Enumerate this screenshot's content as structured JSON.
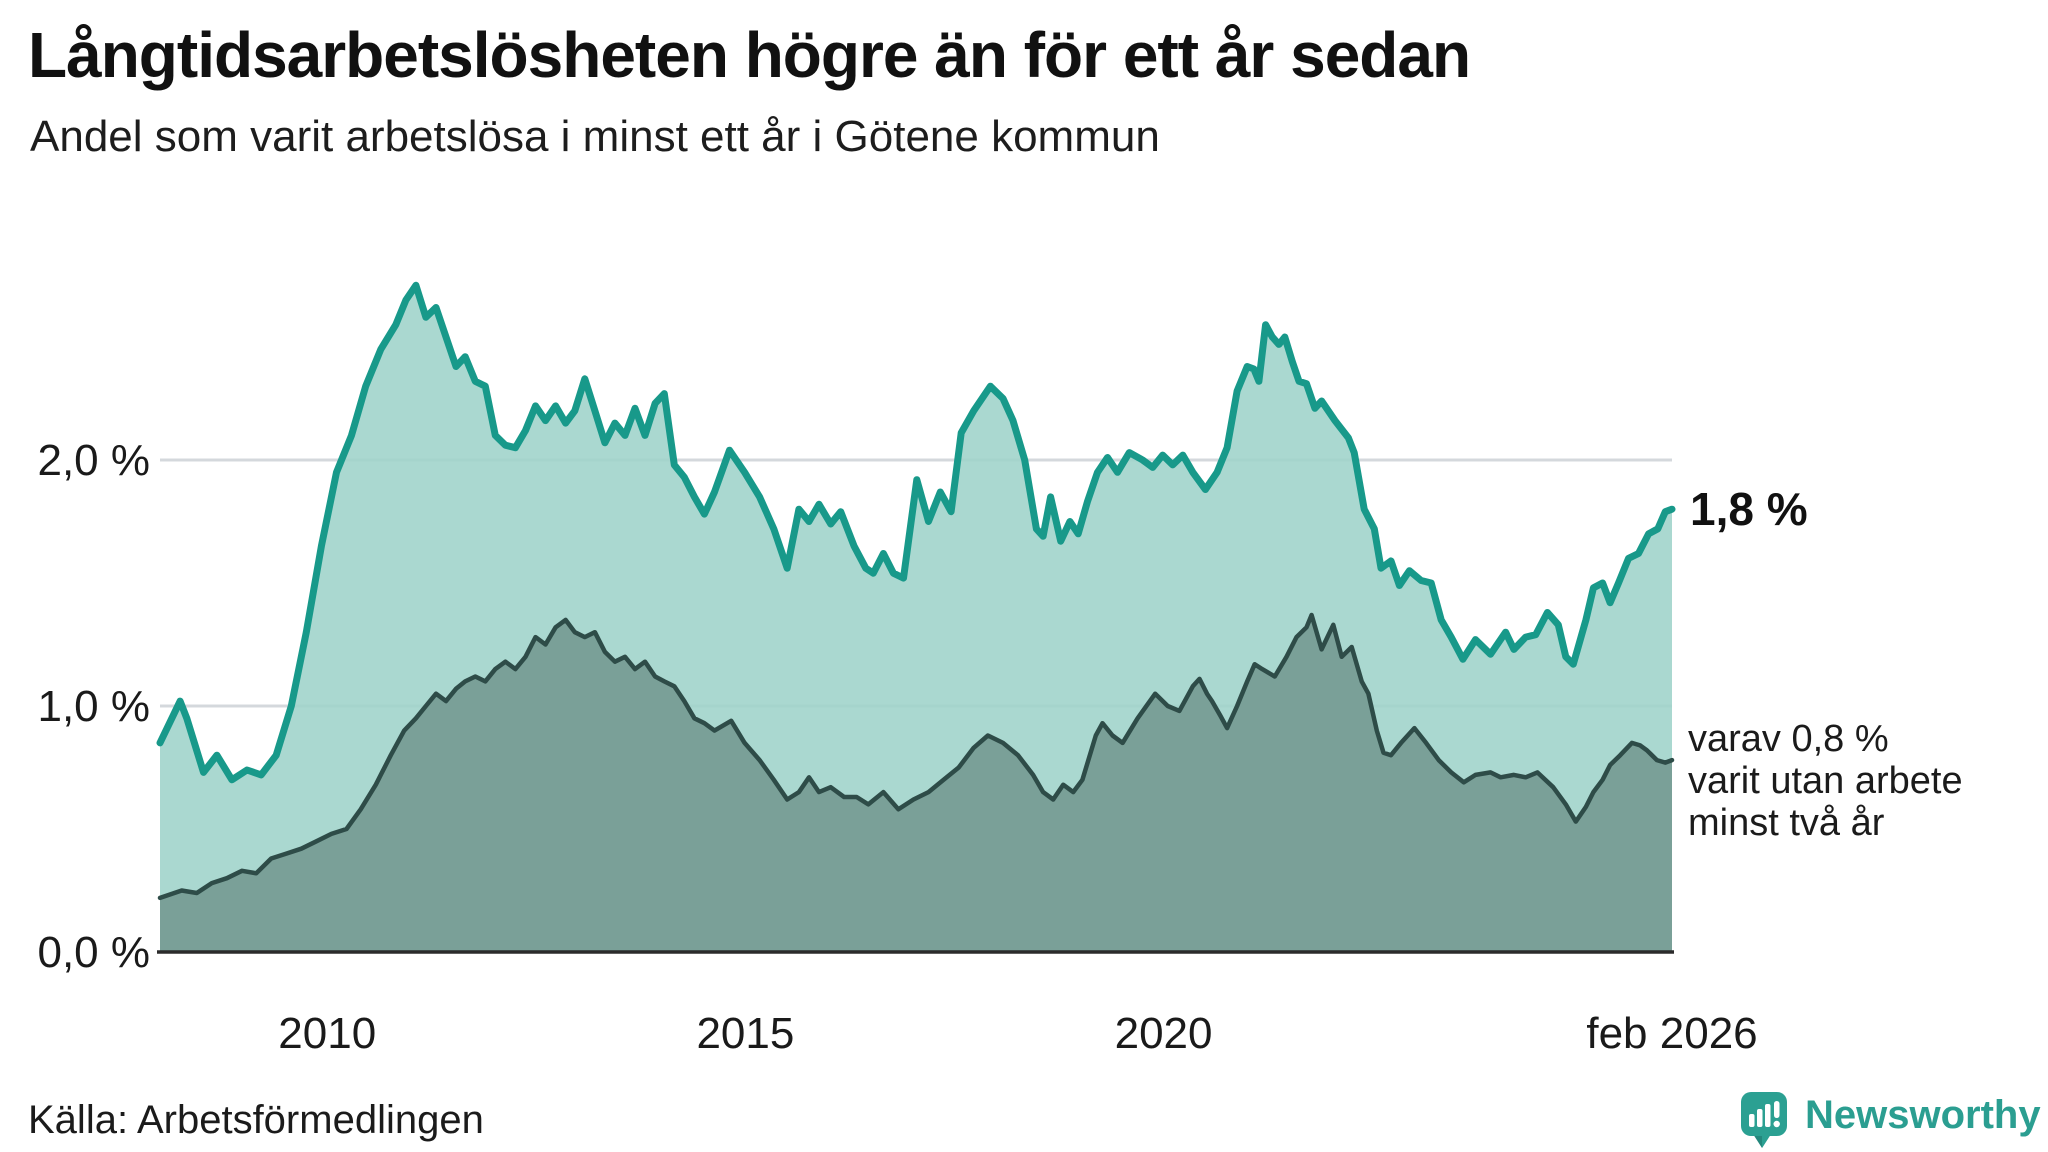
{
  "header": {
    "title": "Långtidsarbetslösheten högre än för ett år sedan",
    "subtitle": "Andel som varit arbetslösa i minst ett år i Götene kommun"
  },
  "annotations": {
    "end_value": "1,8 %",
    "sub_lines": [
      "varav 0,8 %",
      "varit utan arbete",
      "minst två år"
    ]
  },
  "footer": {
    "source": "Källa: Arbetsförmedlingen",
    "brand": "Newsworthy"
  },
  "colors": {
    "line_one_year": "#18998a",
    "fill_one_year": "#9ed3ca",
    "line_two_years": "#2e4c48",
    "fill_two_years": "#779d95",
    "gridline": "#d4d8dc",
    "axis": "#2b2b2b",
    "text": "#1a1a1a",
    "brand_teal": "#2b9e91"
  },
  "chart_data": {
    "type": "area",
    "title": "Långtidsarbetslösheten högre än för ett år sedan",
    "subtitle": "Andel som varit arbetslösa i minst ett år i Götene kommun",
    "x_range": [
      2008.0,
      2026.08
    ],
    "y_range": [
      0,
      2.8
    ],
    "x_axis": {
      "ticks": [
        {
          "x": 2010,
          "label": "2010"
        },
        {
          "x": 2015,
          "label": "2015"
        },
        {
          "x": 2020,
          "label": "2020"
        },
        {
          "x": 2026.08,
          "label": "feb 2026"
        }
      ]
    },
    "y_axis": {
      "ticks": [
        {
          "value": 0,
          "label": "0,0 %"
        },
        {
          "value": 1,
          "label": "1,0 %"
        },
        {
          "value": 2,
          "label": "2,0 %"
        }
      ],
      "gridlines": [
        1,
        2
      ]
    },
    "series": [
      {
        "name": "arbetslösa minst ett år",
        "end_label": "1,8 %",
        "end_value": 1.8,
        "points": [
          [
            2008.0,
            0.85
          ],
          [
            2008.24,
            1.02
          ],
          [
            2008.32,
            0.95
          ],
          [
            2008.52,
            0.73
          ],
          [
            2008.68,
            0.8
          ],
          [
            2008.86,
            0.7
          ],
          [
            2009.04,
            0.74
          ],
          [
            2009.21,
            0.72
          ],
          [
            2009.39,
            0.8
          ],
          [
            2009.57,
            1.0
          ],
          [
            2009.75,
            1.3
          ],
          [
            2009.93,
            1.65
          ],
          [
            2010.11,
            1.95
          ],
          [
            2010.29,
            2.1
          ],
          [
            2010.46,
            2.3
          ],
          [
            2010.64,
            2.45
          ],
          [
            2010.82,
            2.55
          ],
          [
            2010.94,
            2.65
          ],
          [
            2011.06,
            2.71
          ],
          [
            2011.18,
            2.58
          ],
          [
            2011.3,
            2.62
          ],
          [
            2011.42,
            2.5
          ],
          [
            2011.54,
            2.38
          ],
          [
            2011.65,
            2.42
          ],
          [
            2011.77,
            2.32
          ],
          [
            2011.89,
            2.3
          ],
          [
            2012.01,
            2.1
          ],
          [
            2012.13,
            2.06
          ],
          [
            2012.25,
            2.05
          ],
          [
            2012.37,
            2.12
          ],
          [
            2012.49,
            2.22
          ],
          [
            2012.61,
            2.16
          ],
          [
            2012.73,
            2.22
          ],
          [
            2012.85,
            2.15
          ],
          [
            2012.96,
            2.2
          ],
          [
            2013.08,
            2.33
          ],
          [
            2013.2,
            2.2
          ],
          [
            2013.32,
            2.07
          ],
          [
            2013.44,
            2.15
          ],
          [
            2013.56,
            2.1
          ],
          [
            2013.68,
            2.21
          ],
          [
            2013.8,
            2.1
          ],
          [
            2013.92,
            2.23
          ],
          [
            2014.03,
            2.27
          ],
          [
            2014.15,
            1.98
          ],
          [
            2014.27,
            1.93
          ],
          [
            2014.39,
            1.85
          ],
          [
            2014.51,
            1.78
          ],
          [
            2014.63,
            1.87
          ],
          [
            2014.81,
            2.04
          ],
          [
            2014.99,
            1.95
          ],
          [
            2015.17,
            1.85
          ],
          [
            2015.34,
            1.72
          ],
          [
            2015.5,
            1.56
          ],
          [
            2015.64,
            1.8
          ],
          [
            2015.76,
            1.75
          ],
          [
            2015.88,
            1.82
          ],
          [
            2016.02,
            1.74
          ],
          [
            2016.14,
            1.79
          ],
          [
            2016.3,
            1.65
          ],
          [
            2016.44,
            1.56
          ],
          [
            2016.53,
            1.54
          ],
          [
            2016.65,
            1.62
          ],
          [
            2016.77,
            1.54
          ],
          [
            2016.89,
            1.52
          ],
          [
            2017.05,
            1.92
          ],
          [
            2017.19,
            1.75
          ],
          [
            2017.33,
            1.87
          ],
          [
            2017.46,
            1.79
          ],
          [
            2017.58,
            2.11
          ],
          [
            2017.73,
            2.2
          ],
          [
            2017.93,
            2.3
          ],
          [
            2018.08,
            2.25
          ],
          [
            2018.2,
            2.16
          ],
          [
            2018.34,
            2.0
          ],
          [
            2018.48,
            1.72
          ],
          [
            2018.56,
            1.69
          ],
          [
            2018.65,
            1.85
          ],
          [
            2018.77,
            1.67
          ],
          [
            2018.88,
            1.75
          ],
          [
            2018.98,
            1.7
          ],
          [
            2019.09,
            1.83
          ],
          [
            2019.21,
            1.95
          ],
          [
            2019.33,
            2.01
          ],
          [
            2019.45,
            1.95
          ],
          [
            2019.59,
            2.03
          ],
          [
            2019.75,
            2.0
          ],
          [
            2019.87,
            1.97
          ],
          [
            2019.99,
            2.02
          ],
          [
            2020.11,
            1.98
          ],
          [
            2020.23,
            2.02
          ],
          [
            2020.35,
            1.95
          ],
          [
            2020.5,
            1.88
          ],
          [
            2020.64,
            1.95
          ],
          [
            2020.76,
            2.05
          ],
          [
            2020.88,
            2.28
          ],
          [
            2021.0,
            2.38
          ],
          [
            2021.08,
            2.37
          ],
          [
            2021.14,
            2.32
          ],
          [
            2021.22,
            2.55
          ],
          [
            2021.3,
            2.5
          ],
          [
            2021.38,
            2.47
          ],
          [
            2021.45,
            2.5
          ],
          [
            2021.54,
            2.4
          ],
          [
            2021.62,
            2.32
          ],
          [
            2021.71,
            2.31
          ],
          [
            2021.81,
            2.21
          ],
          [
            2021.89,
            2.24
          ],
          [
            2022.05,
            2.16
          ],
          [
            2022.21,
            2.09
          ],
          [
            2022.28,
            2.03
          ],
          [
            2022.4,
            1.8
          ],
          [
            2022.52,
            1.72
          ],
          [
            2022.6,
            1.56
          ],
          [
            2022.72,
            1.59
          ],
          [
            2022.82,
            1.49
          ],
          [
            2022.94,
            1.55
          ],
          [
            2023.08,
            1.51
          ],
          [
            2023.2,
            1.5
          ],
          [
            2023.32,
            1.35
          ],
          [
            2023.44,
            1.28
          ],
          [
            2023.58,
            1.19
          ],
          [
            2023.73,
            1.27
          ],
          [
            2023.91,
            1.21
          ],
          [
            2024.09,
            1.3
          ],
          [
            2024.19,
            1.23
          ],
          [
            2024.33,
            1.28
          ],
          [
            2024.45,
            1.29
          ],
          [
            2024.59,
            1.38
          ],
          [
            2024.72,
            1.33
          ],
          [
            2024.81,
            1.2
          ],
          [
            2024.9,
            1.17
          ],
          [
            2025.05,
            1.35
          ],
          [
            2025.14,
            1.48
          ],
          [
            2025.25,
            1.5
          ],
          [
            2025.34,
            1.42
          ],
          [
            2025.44,
            1.5
          ],
          [
            2025.56,
            1.6
          ],
          [
            2025.68,
            1.62
          ],
          [
            2025.8,
            1.7
          ],
          [
            2025.91,
            1.72
          ],
          [
            2026.0,
            1.79
          ],
          [
            2026.08,
            1.8
          ]
        ]
      },
      {
        "name": "varav arbetslösa minst två år",
        "end_label": "varav 0,8 % varit utan arbete minst två år",
        "end_value": 0.8,
        "points": [
          [
            2008.0,
            0.22
          ],
          [
            2008.26,
            0.25
          ],
          [
            2008.44,
            0.24
          ],
          [
            2008.62,
            0.28
          ],
          [
            2008.8,
            0.3
          ],
          [
            2008.98,
            0.33
          ],
          [
            2009.15,
            0.32
          ],
          [
            2009.33,
            0.38
          ],
          [
            2009.51,
            0.4
          ],
          [
            2009.69,
            0.42
          ],
          [
            2009.87,
            0.45
          ],
          [
            2010.05,
            0.48
          ],
          [
            2010.23,
            0.5
          ],
          [
            2010.4,
            0.58
          ],
          [
            2010.58,
            0.68
          ],
          [
            2010.76,
            0.8
          ],
          [
            2010.92,
            0.9
          ],
          [
            2011.06,
            0.95
          ],
          [
            2011.18,
            1.0
          ],
          [
            2011.3,
            1.05
          ],
          [
            2011.42,
            1.02
          ],
          [
            2011.54,
            1.07
          ],
          [
            2011.65,
            1.1
          ],
          [
            2011.77,
            1.12
          ],
          [
            2011.89,
            1.1
          ],
          [
            2012.01,
            1.15
          ],
          [
            2012.13,
            1.18
          ],
          [
            2012.25,
            1.15
          ],
          [
            2012.37,
            1.2
          ],
          [
            2012.49,
            1.28
          ],
          [
            2012.61,
            1.25
          ],
          [
            2012.73,
            1.32
          ],
          [
            2012.85,
            1.35
          ],
          [
            2012.96,
            1.3
          ],
          [
            2013.08,
            1.28
          ],
          [
            2013.2,
            1.3
          ],
          [
            2013.32,
            1.22
          ],
          [
            2013.44,
            1.18
          ],
          [
            2013.56,
            1.2
          ],
          [
            2013.68,
            1.15
          ],
          [
            2013.8,
            1.18
          ],
          [
            2013.92,
            1.12
          ],
          [
            2014.03,
            1.1
          ],
          [
            2014.15,
            1.08
          ],
          [
            2014.27,
            1.02
          ],
          [
            2014.39,
            0.95
          ],
          [
            2014.51,
            0.93
          ],
          [
            2014.63,
            0.9
          ],
          [
            2014.83,
            0.94
          ],
          [
            2014.99,
            0.85
          ],
          [
            2015.17,
            0.78
          ],
          [
            2015.34,
            0.7
          ],
          [
            2015.5,
            0.62
          ],
          [
            2015.64,
            0.65
          ],
          [
            2015.76,
            0.71
          ],
          [
            2015.88,
            0.65
          ],
          [
            2016.02,
            0.67
          ],
          [
            2016.18,
            0.63
          ],
          [
            2016.33,
            0.63
          ],
          [
            2016.47,
            0.6
          ],
          [
            2016.65,
            0.65
          ],
          [
            2016.83,
            0.58
          ],
          [
            2017.01,
            0.62
          ],
          [
            2017.19,
            0.65
          ],
          [
            2017.37,
            0.7
          ],
          [
            2017.55,
            0.75
          ],
          [
            2017.73,
            0.83
          ],
          [
            2017.9,
            0.88
          ],
          [
            2018.08,
            0.85
          ],
          [
            2018.26,
            0.8
          ],
          [
            2018.44,
            0.72
          ],
          [
            2018.56,
            0.65
          ],
          [
            2018.68,
            0.62
          ],
          [
            2018.8,
            0.68
          ],
          [
            2018.92,
            0.65
          ],
          [
            2019.03,
            0.7
          ],
          [
            2019.19,
            0.88
          ],
          [
            2019.27,
            0.93
          ],
          [
            2019.39,
            0.88
          ],
          [
            2019.51,
            0.85
          ],
          [
            2019.69,
            0.95
          ],
          [
            2019.9,
            1.05
          ],
          [
            2020.05,
            1.0
          ],
          [
            2020.19,
            0.98
          ],
          [
            2020.35,
            1.08
          ],
          [
            2020.43,
            1.11
          ],
          [
            2020.52,
            1.05
          ],
          [
            2020.58,
            1.02
          ],
          [
            2020.68,
            0.96
          ],
          [
            2020.76,
            0.91
          ],
          [
            2020.88,
            1.0
          ],
          [
            2021.0,
            1.1
          ],
          [
            2021.09,
            1.17
          ],
          [
            2021.18,
            1.15
          ],
          [
            2021.33,
            1.12
          ],
          [
            2021.47,
            1.2
          ],
          [
            2021.59,
            1.28
          ],
          [
            2021.71,
            1.32
          ],
          [
            2021.77,
            1.37
          ],
          [
            2021.89,
            1.23
          ],
          [
            2022.03,
            1.33
          ],
          [
            2022.13,
            1.2
          ],
          [
            2022.25,
            1.24
          ],
          [
            2022.37,
            1.1
          ],
          [
            2022.45,
            1.05
          ],
          [
            2022.55,
            0.9
          ],
          [
            2022.63,
            0.81
          ],
          [
            2022.72,
            0.8
          ],
          [
            2022.84,
            0.85
          ],
          [
            2023.0,
            0.91
          ],
          [
            2023.14,
            0.85
          ],
          [
            2023.29,
            0.78
          ],
          [
            2023.44,
            0.73
          ],
          [
            2023.59,
            0.69
          ],
          [
            2023.73,
            0.72
          ],
          [
            2023.91,
            0.73
          ],
          [
            2024.03,
            0.71
          ],
          [
            2024.19,
            0.72
          ],
          [
            2024.33,
            0.71
          ],
          [
            2024.47,
            0.73
          ],
          [
            2024.66,
            0.67
          ],
          [
            2024.81,
            0.6
          ],
          [
            2024.93,
            0.53
          ],
          [
            2025.05,
            0.59
          ],
          [
            2025.14,
            0.65
          ],
          [
            2025.25,
            0.7
          ],
          [
            2025.34,
            0.76
          ],
          [
            2025.46,
            0.8
          ],
          [
            2025.6,
            0.85
          ],
          [
            2025.7,
            0.84
          ],
          [
            2025.78,
            0.82
          ],
          [
            2025.9,
            0.78
          ],
          [
            2026.0,
            0.77
          ],
          [
            2026.08,
            0.78
          ]
        ]
      }
    ],
    "legend": false,
    "grid": "horizontal"
  }
}
